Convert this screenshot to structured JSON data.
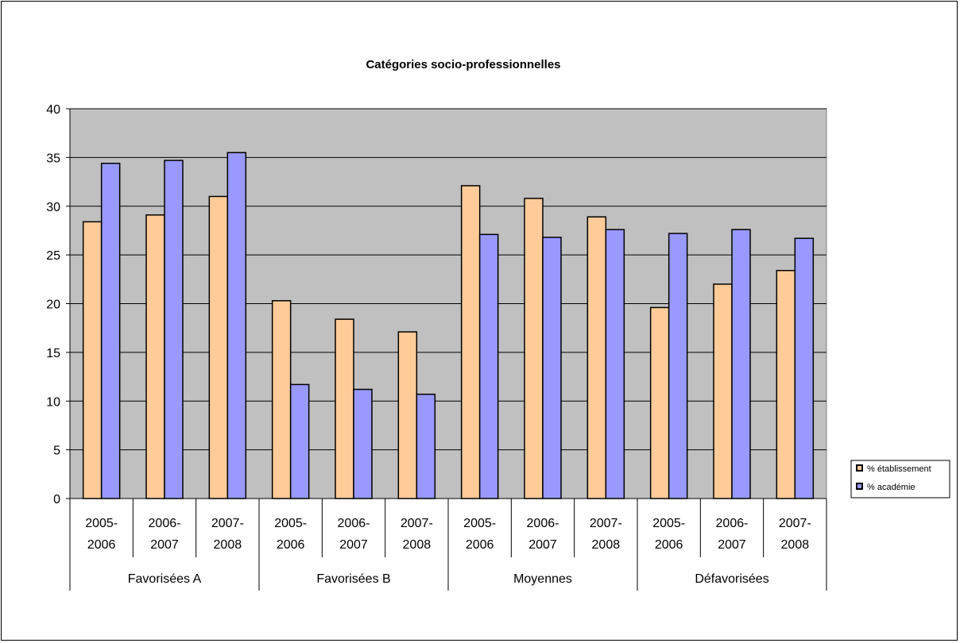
{
  "chart_data": {
    "type": "bar",
    "title": "Catégories socio-professionnelles",
    "groups": [
      "Favorisées A",
      "Favorisées B",
      "Moyennes",
      "Défavorisées"
    ],
    "categories": [
      [
        "2005-",
        "2006"
      ],
      [
        "2006-",
        "2007"
      ],
      [
        "2007-",
        "2008"
      ],
      [
        "2005-",
        "2006"
      ],
      [
        "2006-",
        "2007"
      ],
      [
        "2007-",
        "2008"
      ],
      [
        "2005-",
        "2006"
      ],
      [
        "2006-",
        "2007"
      ],
      [
        "2007-",
        "2008"
      ],
      [
        "2005-",
        "2006"
      ],
      [
        "2006-",
        "2007"
      ],
      [
        "2007-",
        "2008"
      ]
    ],
    "series": [
      {
        "name": "% établissement",
        "color": "#FFCC99",
        "values": [
          28.4,
          29.1,
          31.0,
          20.3,
          18.4,
          17.1,
          32.1,
          30.8,
          28.9,
          19.6,
          22.0,
          23.4
        ]
      },
      {
        "name": "% académie",
        "color": "#9999FF",
        "values": [
          34.4,
          34.7,
          35.5,
          11.7,
          11.2,
          10.7,
          27.1,
          26.8,
          27.6,
          27.2,
          27.6,
          26.7
        ]
      }
    ],
    "ylim": [
      0,
      40
    ],
    "yticks": [
      "0",
      "5",
      "10",
      "15",
      "20",
      "25",
      "30",
      "35",
      "40"
    ],
    "grid": true,
    "plot_background": "#C0C0C0",
    "legend_position": "right"
  }
}
